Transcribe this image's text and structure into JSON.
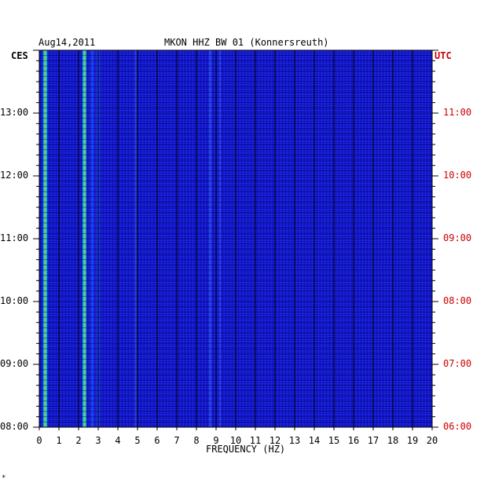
{
  "header": {
    "date": "Aug14,2011",
    "station": "MKON HHZ BW 01 (Konnersreuth)"
  },
  "corner_mark": "*",
  "chart_data": {
    "type": "heatmap",
    "title": "MKON HHZ BW 01 (Konnersreuth)",
    "date": "Aug14,2011",
    "xlabel": "FREQUENCY (HZ)",
    "xlim": [
      0,
      20
    ],
    "x_ticks": [
      "0",
      "1",
      "2",
      "3",
      "4",
      "5",
      "6",
      "7",
      "8",
      "9",
      "10",
      "11",
      "12",
      "13",
      "14",
      "15",
      "16",
      "17",
      "18",
      "19",
      "20"
    ],
    "left_axis": {
      "label": "CES",
      "ticks": [
        "08:00",
        "09:00",
        "10:00",
        "11:00",
        "12:00",
        "13:00"
      ],
      "ylim_hours": [
        8,
        14
      ]
    },
    "right_axis": {
      "label": "UTC",
      "ticks": [
        "06:00",
        "07:00",
        "08:00",
        "09:00",
        "10:00",
        "11:00"
      ],
      "ylim_hours": [
        6,
        12
      ]
    },
    "colors": {
      "background": "#1010c8",
      "low": "#0a14b4",
      "mid": "#1e50ff",
      "high": "#00dcdc",
      "peak": "#ffdc00",
      "max": "#ff3000",
      "grid": "#000000",
      "utc_axis": "#cc0000"
    },
    "noise_bands_hz": [
      {
        "freq": 0.3,
        "intensity": 0.9
      },
      {
        "freq": 2.3,
        "intensity": 0.85
      },
      {
        "freq": 2.7,
        "intensity": 0.7
      },
      {
        "freq": 3.0,
        "intensity": 0.75
      },
      {
        "freq": 4.9,
        "intensity": 0.35
      },
      {
        "freq": 8.7,
        "intensity": 0.45
      },
      {
        "freq": 9.2,
        "intensity": 0.3
      }
    ]
  }
}
